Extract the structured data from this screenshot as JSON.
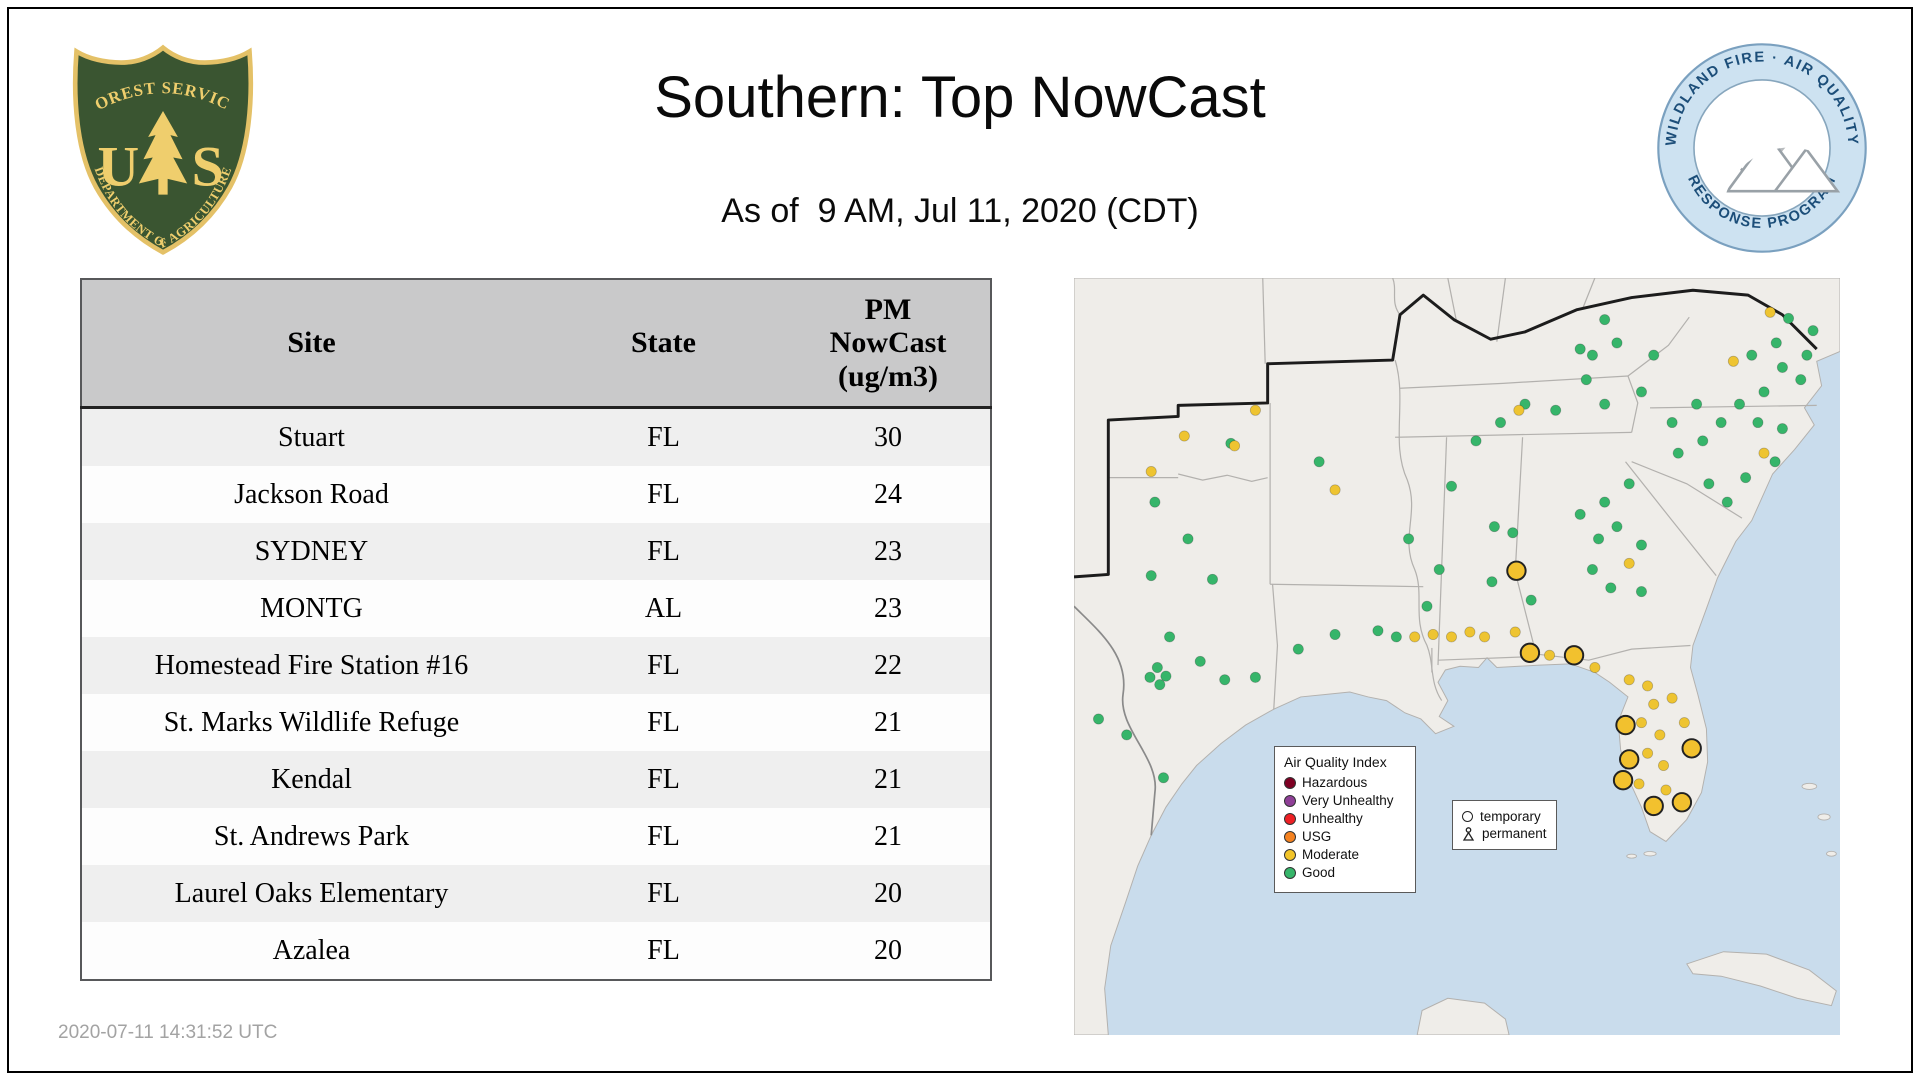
{
  "page": {
    "title": "Southern: Top NowCast",
    "subtitle": "As of  9 AM, Jul 11, 2020 (CDT)",
    "timestamp": "2020-07-11 14:31:52 UTC"
  },
  "logos": {
    "usfs": {
      "top_text": "FOREST SERVICE",
      "monogram_left": "U",
      "monogram_right": "S",
      "bottom_text": "DEPARTMENT OF AGRICULTURE"
    },
    "wfaqrp": {
      "top_text": "WILDLAND FIRE · AIR QUALITY",
      "bottom_text": "RESPONSE PROGRAM"
    }
  },
  "table": {
    "headers": [
      "Site",
      "State",
      "PM\nNowCast\n(ug/m3)"
    ],
    "rows": [
      {
        "site": "Stuart",
        "state": "FL",
        "value": "30"
      },
      {
        "site": "Jackson Road",
        "state": "FL",
        "value": "24"
      },
      {
        "site": "SYDNEY",
        "state": "FL",
        "value": "23"
      },
      {
        "site": "MONTG",
        "state": "AL",
        "value": "23"
      },
      {
        "site": "Homestead Fire Station #16",
        "state": "FL",
        "value": "22"
      },
      {
        "site": "St. Marks Wildlife Refuge",
        "state": "FL",
        "value": "21"
      },
      {
        "site": "Kendal",
        "state": "FL",
        "value": "21"
      },
      {
        "site": "St. Andrews Park",
        "state": "FL",
        "value": "21"
      },
      {
        "site": "Laurel Oaks Elementary",
        "state": "FL",
        "value": "20"
      },
      {
        "site": "Azalea",
        "state": "FL",
        "value": "20"
      }
    ]
  },
  "map": {
    "colors": {
      "water": "#c9dcec",
      "land": "#efede9",
      "state_line": "#b3b1ae",
      "region_outline": "#1c1c1c",
      "good": "#36b56a",
      "moderate": "#eec431",
      "temporary_fill": "#f2c12e",
      "temporary_stroke": "#222222"
    },
    "legend": {
      "title": "Air Quality Index",
      "items": [
        {
          "label": "Hazardous",
          "color": "#7e0023"
        },
        {
          "label": "Very Unhealthy",
          "color": "#8f3f97"
        },
        {
          "label": "Unhealthy",
          "color": "#ed2024"
        },
        {
          "label": "USG",
          "color": "#f58220"
        },
        {
          "label": "Moderate",
          "color": "#f2c429"
        },
        {
          "label": "Good",
          "color": "#36b56a"
        }
      ]
    },
    "symbols_legend": {
      "temporary_label": "temporary",
      "permanent_label": "permanent"
    },
    "markers": {
      "good": [
        [
          128,
          135
        ],
        [
          66,
          183
        ],
        [
          93,
          213
        ],
        [
          63,
          243
        ],
        [
          113,
          246
        ],
        [
          78,
          293
        ],
        [
          103,
          313
        ],
        [
          123,
          328
        ],
        [
          148,
          326
        ],
        [
          68,
          318
        ],
        [
          75,
          325
        ],
        [
          70,
          332
        ],
        [
          62,
          326
        ],
        [
          43,
          373
        ],
        [
          73,
          408
        ],
        [
          20,
          360
        ],
        [
          183,
          303
        ],
        [
          213,
          291
        ],
        [
          248,
          288
        ],
        [
          263,
          293
        ],
        [
          288,
          268
        ],
        [
          273,
          213
        ],
        [
          298,
          238
        ],
        [
          343,
          203
        ],
        [
          358,
          208
        ],
        [
          341,
          248
        ],
        [
          373,
          263
        ],
        [
          328,
          133
        ],
        [
          348,
          118
        ],
        [
          368,
          103
        ],
        [
          393,
          108
        ],
        [
          418,
          83
        ],
        [
          433,
          103
        ],
        [
          463,
          93
        ],
        [
          413,
          58
        ],
        [
          423,
          63
        ],
        [
          443,
          53
        ],
        [
          473,
          63
        ],
        [
          413,
          193
        ],
        [
          428,
          213
        ],
        [
          443,
          203
        ],
        [
          423,
          238
        ],
        [
          438,
          253
        ],
        [
          463,
          218
        ],
        [
          433,
          183
        ],
        [
          453,
          168
        ],
        [
          493,
          143
        ],
        [
          513,
          133
        ],
        [
          528,
          118
        ],
        [
          543,
          103
        ],
        [
          558,
          118
        ],
        [
          563,
          93
        ],
        [
          578,
          73
        ],
        [
          593,
          83
        ],
        [
          573,
          53
        ],
        [
          553,
          63
        ],
        [
          508,
          103
        ],
        [
          488,
          118
        ],
        [
          518,
          168
        ],
        [
          533,
          183
        ],
        [
          548,
          163
        ],
        [
          578,
          123
        ],
        [
          572,
          150
        ],
        [
          598,
          63
        ],
        [
          603,
          43
        ],
        [
          583,
          33
        ],
        [
          433,
          34
        ],
        [
          463,
          256
        ],
        [
          308,
          170
        ],
        [
          200,
          150
        ]
      ],
      "moderate": [
        [
          90,
          129
        ],
        [
          131,
          137
        ],
        [
          63,
          158
        ],
        [
          213,
          173
        ],
        [
          278,
          293
        ],
        [
          293,
          291
        ],
        [
          308,
          293
        ],
        [
          335,
          293
        ],
        [
          323,
          289
        ],
        [
          363,
          108
        ],
        [
          453,
          233
        ],
        [
          425,
          318
        ],
        [
          388,
          308
        ],
        [
          453,
          328
        ],
        [
          468,
          333
        ],
        [
          473,
          348
        ],
        [
          463,
          363
        ],
        [
          478,
          373
        ],
        [
          468,
          388
        ],
        [
          481,
          398
        ],
        [
          461,
          413
        ],
        [
          483,
          418
        ],
        [
          488,
          343
        ],
        [
          498,
          363
        ],
        [
          538,
          68
        ],
        [
          563,
          143
        ],
        [
          568,
          28
        ],
        [
          148,
          108
        ],
        [
          360,
          289
        ]
      ],
      "temporary": [
        [
          361,
          239
        ],
        [
          372,
          306
        ],
        [
          408,
          308
        ],
        [
          450,
          365
        ],
        [
          453,
          393
        ],
        [
          448,
          410
        ],
        [
          504,
          384
        ],
        [
          473,
          431
        ],
        [
          496,
          428
        ]
      ]
    }
  }
}
